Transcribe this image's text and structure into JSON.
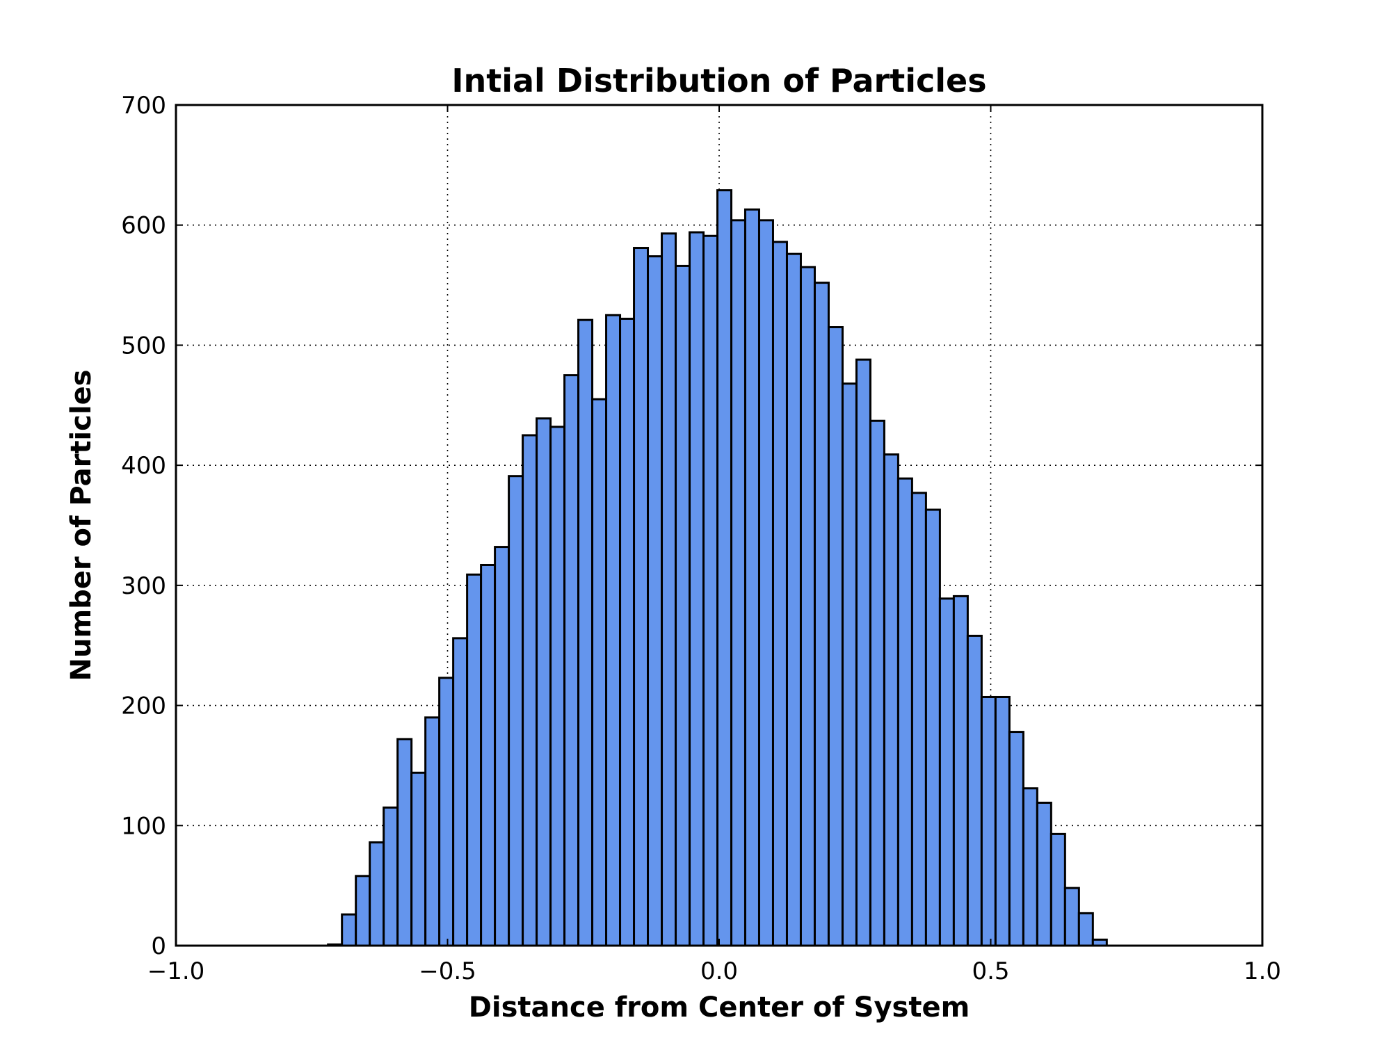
{
  "chart_data": {
    "type": "bar",
    "title": "Intial Distribution of Particles",
    "xlabel": "Distance from Center of System",
    "ylabel": "Number of Particles",
    "xlim": [
      -1.0,
      1.0
    ],
    "ylim": [
      0,
      700
    ],
    "x_ticks": [
      -1.0,
      -0.5,
      0.0,
      0.5,
      1.0
    ],
    "x_tick_labels": [
      "−1.0",
      "−0.5",
      "0.0",
      "0.5",
      "1.0"
    ],
    "y_ticks": [
      0,
      100,
      200,
      300,
      400,
      500,
      600,
      700
    ],
    "y_tick_labels": [
      "0",
      "100",
      "200",
      "300",
      "400",
      "500",
      "600",
      "700"
    ],
    "grid": true,
    "bar_color": "#6495ED",
    "edge_color": "#000000",
    "bin_start": -0.72,
    "bin_width": 0.0256,
    "values": [
      1,
      26,
      58,
      86,
      115,
      172,
      144,
      190,
      223,
      256,
      309,
      317,
      332,
      391,
      425,
      439,
      432,
      475,
      521,
      455,
      525,
      522,
      581,
      574,
      593,
      566,
      594,
      591,
      629,
      604,
      613,
      604,
      586,
      576,
      565,
      552,
      515,
      468,
      488,
      437,
      409,
      389,
      377,
      363,
      289,
      291,
      258,
      207,
      207,
      178,
      131,
      119,
      93,
      48,
      27,
      5
    ]
  }
}
